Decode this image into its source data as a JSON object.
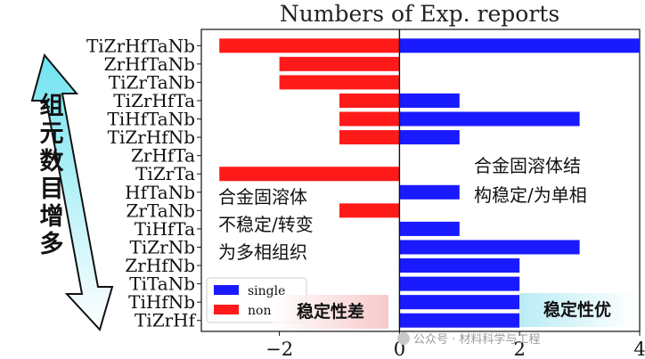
{
  "chart_data": {
    "type": "bar",
    "orientation": "horizontal",
    "title": "Numbers of Exp. reports",
    "categories": [
      "TiZrHfTaNb",
      "ZrHfTaNb",
      "TiZrTaNb",
      "TiZrHfTa",
      "TiHfTaNb",
      "TiZrHfNb",
      "ZrHfTa",
      "TiZrTa",
      "HfTaNb",
      "ZrTaNb",
      "TiHfTa",
      "TiZrNb",
      "ZrHfNb",
      "TiTaNb",
      "TiHfNb",
      "TiZrHf"
    ],
    "series": [
      {
        "name": "single",
        "color": "#1a1aff",
        "values": [
          4,
          0,
          0,
          1,
          3,
          1,
          0,
          0,
          1,
          0,
          1,
          3,
          2,
          2,
          2,
          2
        ]
      },
      {
        "name": "non",
        "color": "#ff1a1a",
        "values": [
          -3,
          -2,
          -2,
          -1,
          -1,
          -1,
          0,
          -3,
          0,
          -1,
          0,
          0,
          0,
          0,
          0,
          0
        ]
      }
    ],
    "xlim": [
      -3.3,
      4.0
    ],
    "xticks": [
      -2,
      0,
      2,
      4
    ],
    "xtick_labels": [
      "−2",
      "0",
      "2",
      "4"
    ],
    "legend_position": "lower-left",
    "grid": false
  },
  "annotations": {
    "left_lines": [
      "合金固溶体",
      "不稳定/转变",
      "为多相组织"
    ],
    "right_lines": [
      "合金固溶体结",
      "构稳定/为单相"
    ],
    "left_badge": "稳定性差",
    "right_badge": "稳定性优",
    "arrow_chars": [
      "组",
      "元",
      "数",
      "目",
      "增",
      "多"
    ],
    "watermark": "公众号 · 材料科学与工程"
  },
  "colors": {
    "positive": "#1a1aff",
    "negative": "#ff1a1a",
    "arrow_fill_top": "#6fe3f0",
    "arrow_fill_bottom": "#ffffff"
  }
}
